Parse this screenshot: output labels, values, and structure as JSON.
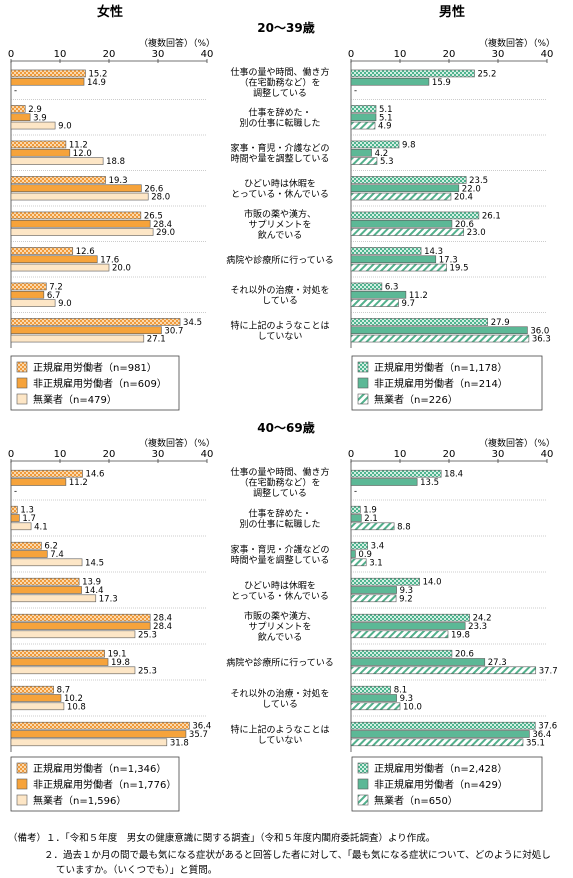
{
  "headers": {
    "female": "女性",
    "male": "男性"
  },
  "axis_note": "（複数回答）（%）",
  "colors": {
    "regular": "#f5b36a",
    "nonregular": "#f8a840",
    "unemployed": "#fff4e0",
    "m_regular": "#9fd8c3",
    "m_nonregular": "#6cc2a6",
    "m_unemployed": "#e6f5ef",
    "border": "#5a5a5a"
  },
  "categories": [
    [
      "仕事の量や時間、働き方",
      "（在宅勤務など）を",
      "調整している"
    ],
    [
      "仕事を辞めた・",
      "別の仕事に転職した"
    ],
    [
      "家事・育児・介護などの",
      "時間や量を調整している"
    ],
    [
      "ひどい時は休暇を",
      "とっている・休んでいる"
    ],
    [
      "市販の薬や漢方、",
      "サプリメントを",
      "飲んでいる"
    ],
    [
      "病院や診療所に行っている"
    ],
    [
      "それ以外の治療・対処を",
      "している"
    ],
    [
      "特に上記のようなことは",
      "していない"
    ]
  ],
  "notes": [
    "（備考）１．「令和５年度　男女の健康意識に関する調査」（令和５年度内閣府委託調査）より作成。",
    "２．過去１か月の間で最も気になる症状があると回答した者に対して、「最も気になる症状について、どのように対処し",
    "ていますか。（いくつでも）」と質問。"
  ],
  "chart_data": [
    {
      "type": "bar",
      "age_group": "20～39歳",
      "xlim": [
        0,
        40
      ],
      "ticks": [
        0,
        10,
        20,
        30,
        40
      ],
      "female": {
        "series": [
          {
            "name": "正規雇用労働者（n=981）",
            "values": [
              15.2,
              2.9,
              11.2,
              19.3,
              26.5,
              12.6,
              7.2,
              34.5
            ],
            "labels": [
              "15.2",
              "2.9",
              "11.2",
              "19.3",
              "26.5",
              "12.6",
              "7.2",
              "34.5"
            ]
          },
          {
            "name": "非正規雇用労働者（n=609）",
            "values": [
              14.9,
              3.9,
              12.0,
              26.6,
              28.4,
              17.6,
              6.7,
              30.7
            ],
            "labels": [
              "14.9",
              "3.9",
              "12.0",
              "26.6",
              "28.4",
              "17.6",
              "6.7",
              "30.7"
            ]
          },
          {
            "name": "無業者（n=479）",
            "values": [
              0,
              9.0,
              18.8,
              28.0,
              29.0,
              20.0,
              9.0,
              27.1
            ],
            "labels": [
              "-",
              "9.0",
              "18.8",
              "28.0",
              "29.0",
              "20.0",
              "9.0",
              "27.1"
            ]
          }
        ]
      },
      "male": {
        "series": [
          {
            "name": "正規雇用労働者（n=1,178）",
            "values": [
              25.2,
              5.1,
              9.8,
              23.5,
              26.1,
              14.3,
              6.3,
              27.9
            ],
            "labels": [
              "25.2",
              "5.1",
              "9.8",
              "23.5",
              "26.1",
              "14.3",
              "6.3",
              "27.9"
            ]
          },
          {
            "name": "非正規雇用労働者（n=214）",
            "values": [
              15.9,
              5.1,
              4.2,
              22.0,
              20.6,
              17.3,
              11.2,
              36.0
            ],
            "labels": [
              "15.9",
              "5.1",
              "4.2",
              "22.0",
              "20.6",
              "17.3",
              "11.2",
              "36.0"
            ]
          },
          {
            "name": "無業者（n=226）",
            "values": [
              0,
              4.9,
              5.3,
              20.4,
              23.0,
              19.5,
              9.7,
              36.3
            ],
            "labels": [
              "-",
              "4.9",
              "5.3",
              "20.4",
              "23.0",
              "19.5",
              "9.7",
              "36.3"
            ]
          }
        ]
      }
    },
    {
      "type": "bar",
      "age_group": "40～69歳",
      "xlim": [
        0,
        40
      ],
      "ticks": [
        0,
        10,
        20,
        30,
        40
      ],
      "female": {
        "series": [
          {
            "name": "正規雇用労働者（n=1,346）",
            "values": [
              14.6,
              1.3,
              6.2,
              13.9,
              28.4,
              19.1,
              8.7,
              36.4
            ],
            "labels": [
              "14.6",
              "1.3",
              "6.2",
              "13.9",
              "28.4",
              "19.1",
              "8.7",
              "36.4"
            ]
          },
          {
            "name": "非正規雇用労働者（n=1,776）",
            "values": [
              11.2,
              1.7,
              7.4,
              14.4,
              28.4,
              19.8,
              10.2,
              35.7
            ],
            "labels": [
              "11.2",
              "1.7",
              "7.4",
              "14.4",
              "28.4",
              "19.8",
              "10.2",
              "35.7"
            ]
          },
          {
            "name": "無業者（n=1,596）",
            "values": [
              0,
              4.1,
              14.5,
              17.3,
              25.3,
              25.3,
              10.8,
              31.8
            ],
            "labels": [
              "-",
              "4.1",
              "14.5",
              "17.3",
              "25.3",
              "25.3",
              "10.8",
              "31.8"
            ]
          }
        ]
      },
      "male": {
        "series": [
          {
            "name": "正規雇用労働者（n=2,428）",
            "values": [
              18.4,
              1.9,
              3.4,
              14.0,
              24.2,
              20.6,
              8.1,
              37.6
            ],
            "labels": [
              "18.4",
              "1.9",
              "3.4",
              "14.0",
              "24.2",
              "20.6",
              "8.1",
              "37.6"
            ]
          },
          {
            "name": "非正規雇用労働者（n=429）",
            "values": [
              13.5,
              2.1,
              0.9,
              9.3,
              23.3,
              27.3,
              9.3,
              36.4
            ],
            "labels": [
              "13.5",
              "2.1",
              "0.9",
              "9.3",
              "23.3",
              "27.3",
              "9.3",
              "36.4"
            ]
          },
          {
            "name": "無業者（n=650）",
            "values": [
              0,
              8.8,
              3.1,
              9.2,
              19.8,
              37.7,
              10.0,
              35.1
            ],
            "labels": [
              "-",
              "8.8",
              "3.1",
              "9.2",
              "19.8",
              "37.7",
              "10.0",
              "35.1"
            ]
          }
        ]
      }
    }
  ]
}
